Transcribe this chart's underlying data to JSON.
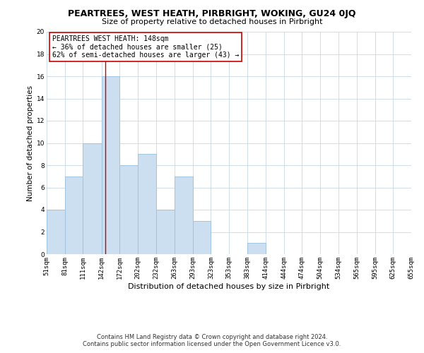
{
  "title": "PEARTREES, WEST HEATH, PIRBRIGHT, WOKING, GU24 0JQ",
  "subtitle": "Size of property relative to detached houses in Pirbright",
  "xlabel": "Distribution of detached houses by size in Pirbright",
  "ylabel": "Number of detached properties",
  "bin_edges": [
    51,
    81,
    111,
    142,
    172,
    202,
    232,
    263,
    293,
    323,
    353,
    383,
    414,
    444,
    474,
    504,
    534,
    565,
    595,
    625,
    655
  ],
  "bin_labels": [
    "51sqm",
    "81sqm",
    "111sqm",
    "142sqm",
    "172sqm",
    "202sqm",
    "232sqm",
    "263sqm",
    "293sqm",
    "323sqm",
    "353sqm",
    "383sqm",
    "414sqm",
    "444sqm",
    "474sqm",
    "504sqm",
    "534sqm",
    "565sqm",
    "595sqm",
    "625sqm",
    "655sqm"
  ],
  "counts": [
    4,
    7,
    10,
    16,
    8,
    9,
    4,
    7,
    3,
    0,
    0,
    1,
    0,
    0,
    0,
    0,
    0,
    0,
    0,
    0
  ],
  "bar_color": "#ccdff0",
  "bar_edge_color": "#a0c4e0",
  "ref_line_x": 148,
  "ref_line_color": "#cc0000",
  "annotation_text_line1": "PEARTREES WEST HEATH: 148sqm",
  "annotation_text_line2": "← 36% of detached houses are smaller (25)",
  "annotation_text_line3": "62% of semi-detached houses are larger (43) →",
  "ylim": [
    0,
    20
  ],
  "yticks": [
    0,
    2,
    4,
    6,
    8,
    10,
    12,
    14,
    16,
    18,
    20
  ],
  "footer_line1": "Contains HM Land Registry data © Crown copyright and database right 2024.",
  "footer_line2": "Contains public sector information licensed under the Open Government Licence v3.0.",
  "background_color": "#ffffff",
  "grid_color": "#c8d8e8",
  "title_fontsize": 9,
  "subtitle_fontsize": 8,
  "ylabel_fontsize": 7.5,
  "xlabel_fontsize": 8,
  "tick_fontsize": 6.5,
  "ann_fontsize": 7,
  "footer_fontsize": 6
}
